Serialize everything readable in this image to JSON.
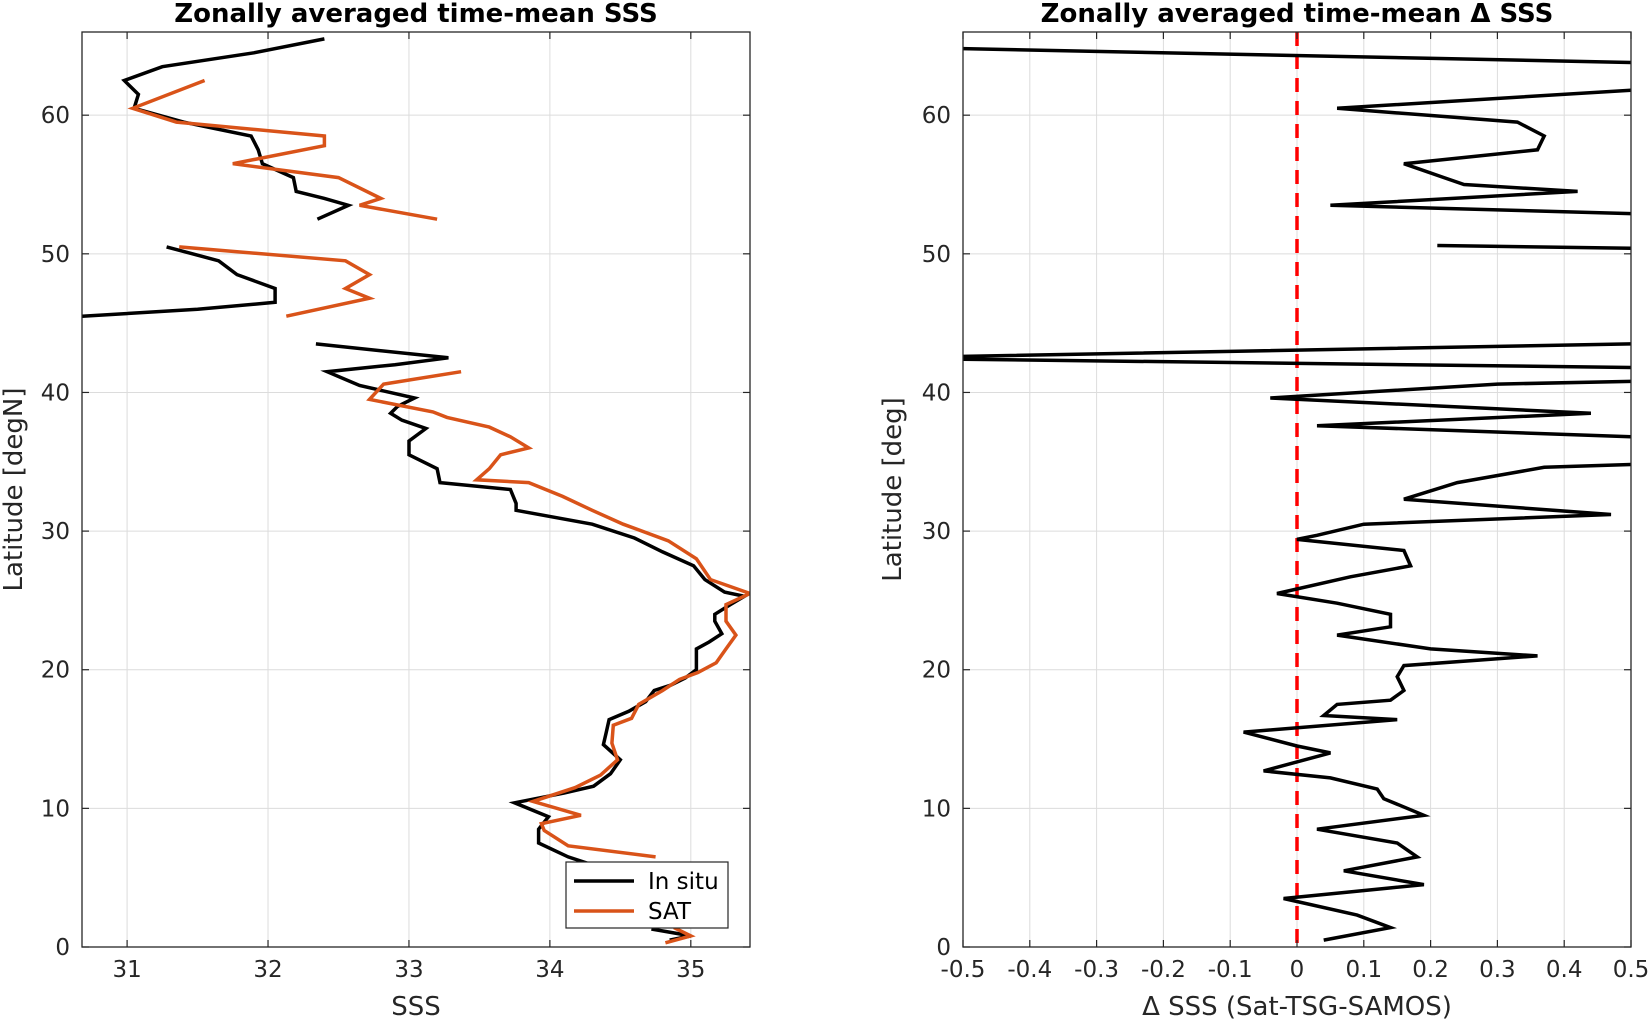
{
  "chart_data": [
    {
      "type": "line",
      "title": "Zonally averaged time-mean SSS",
      "xlabel": "SSS",
      "ylabel": "Latitude [degN]",
      "xlim": [
        30.68,
        35.42
      ],
      "ylim": [
        0,
        66
      ],
      "xticks": [
        31,
        32,
        33,
        34,
        35
      ],
      "yticks": [
        0,
        10,
        20,
        30,
        40,
        50,
        60
      ],
      "grid": true,
      "legend_position": "bottom-right",
      "colors": {
        "In situ": "#000000",
        "SAT": "#d95319"
      },
      "series": [
        {
          "name": "In situ",
          "segments": [
            [
              [
                32.4,
                65.5
              ],
              [
                31.9,
                64.5
              ],
              [
                31.25,
                63.5
              ],
              [
                30.98,
                62.5
              ],
              [
                31.08,
                61.5
              ],
              [
                31.05,
                60.5
              ],
              [
                31.4,
                59.5
              ],
              [
                31.88,
                58.5
              ],
              [
                31.93,
                57.5
              ],
              [
                31.96,
                56.5
              ],
              [
                32.18,
                55.5
              ],
              [
                32.2,
                54.5
              ],
              [
                32.4,
                54.0
              ],
              [
                32.57,
                53.5
              ],
              [
                32.35,
                52.5
              ]
            ],
            [
              [
                31.28,
                50.5
              ],
              [
                31.65,
                49.5
              ],
              [
                31.78,
                48.5
              ],
              [
                32.05,
                47.5
              ],
              [
                32.05,
                46.5
              ],
              [
                31.5,
                46.0
              ],
              [
                30.68,
                45.5
              ]
            ],
            [
              [
                32.34,
                43.5
              ],
              [
                33.28,
                42.5
              ],
              [
                32.9,
                42.0
              ],
              [
                32.42,
                41.5
              ],
              [
                32.65,
                40.5
              ],
              [
                33.04,
                39.6
              ],
              [
                32.92,
                39.0
              ],
              [
                32.87,
                38.5
              ],
              [
                32.95,
                38.0
              ],
              [
                33.12,
                37.4
              ],
              [
                33.0,
                36.5
              ],
              [
                33.0,
                35.5
              ],
              [
                33.2,
                34.5
              ],
              [
                33.22,
                33.5
              ],
              [
                33.72,
                33.0
              ],
              [
                33.76,
                32.0
              ],
              [
                33.76,
                31.5
              ],
              [
                34.3,
                30.5
              ],
              [
                34.6,
                29.5
              ],
              [
                34.8,
                28.5
              ],
              [
                35.02,
                27.5
              ],
              [
                35.1,
                26.5
              ],
              [
                35.24,
                25.6
              ],
              [
                35.38,
                25.3
              ],
              [
                35.28,
                24.7
              ],
              [
                35.17,
                24.0
              ],
              [
                35.17,
                23.5
              ],
              [
                35.22,
                22.6
              ],
              [
                35.13,
                22.0
              ],
              [
                35.04,
                21.5
              ],
              [
                35.04,
                20.5
              ],
              [
                35.04,
                20.0
              ],
              [
                34.96,
                19.4
              ],
              [
                34.86,
                18.9
              ],
              [
                34.74,
                18.5
              ],
              [
                34.68,
                17.7
              ],
              [
                34.56,
                17.0
              ],
              [
                34.42,
                16.4
              ],
              [
                34.4,
                15.5
              ],
              [
                34.38,
                14.6
              ],
              [
                34.5,
                13.5
              ],
              [
                34.43,
                12.5
              ],
              [
                34.31,
                11.6
              ],
              [
                34.1,
                11.1
              ],
              [
                33.75,
                10.4
              ],
              [
                33.99,
                9.4
              ],
              [
                33.92,
                8.5
              ],
              [
                33.92,
                7.5
              ],
              [
                34.13,
                6.5
              ],
              [
                34.4,
                5.6
              ]
            ],
            [
              [
                34.72,
                1.3
              ],
              [
                35.0,
                0.8
              ],
              [
                34.85,
                0.5
              ]
            ]
          ]
        },
        {
          "name": "SAT",
          "segments": [
            [
              [
                31.55,
                62.5
              ],
              [
                31.04,
                60.5
              ],
              [
                31.35,
                59.5
              ],
              [
                32.4,
                58.5
              ],
              [
                32.4,
                57.8
              ],
              [
                31.75,
                56.5
              ],
              [
                32.5,
                55.5
              ],
              [
                32.8,
                54.0
              ],
              [
                32.65,
                53.5
              ],
              [
                33.2,
                52.5
              ]
            ],
            [
              [
                31.37,
                50.5
              ],
              [
                32.55,
                49.5
              ],
              [
                32.72,
                48.5
              ],
              [
                32.55,
                47.5
              ],
              [
                32.72,
                46.8
              ],
              [
                32.13,
                45.5
              ]
            ],
            [
              [
                33.37,
                41.5
              ],
              [
                32.82,
                40.6
              ],
              [
                32.72,
                39.5
              ],
              [
                33.17,
                38.6
              ],
              [
                33.27,
                38.2
              ],
              [
                33.57,
                37.5
              ],
              [
                33.72,
                36.8
              ],
              [
                33.85,
                36.0
              ],
              [
                33.65,
                35.5
              ],
              [
                33.57,
                34.5
              ],
              [
                33.48,
                33.7
              ],
              [
                33.85,
                33.5
              ],
              [
                34.09,
                32.5
              ],
              [
                34.3,
                31.5
              ],
              [
                34.52,
                30.5
              ],
              [
                34.84,
                29.3
              ],
              [
                35.04,
                28.0
              ],
              [
                35.14,
                26.5
              ],
              [
                35.42,
                25.5
              ],
              [
                35.25,
                24.7
              ],
              [
                35.25,
                24.0
              ],
              [
                35.25,
                23.5
              ],
              [
                35.32,
                22.5
              ],
              [
                35.25,
                21.5
              ],
              [
                35.18,
                20.5
              ],
              [
                35.05,
                19.8
              ],
              [
                34.92,
                19.3
              ],
              [
                34.8,
                18.5
              ],
              [
                34.63,
                17.5
              ],
              [
                34.58,
                16.5
              ],
              [
                34.45,
                16.0
              ],
              [
                34.44,
                14.7
              ],
              [
                34.48,
                13.5
              ],
              [
                34.36,
                12.4
              ],
              [
                34.18,
                11.5
              ],
              [
                33.88,
                10.5
              ],
              [
                34.22,
                9.5
              ],
              [
                33.94,
                8.9
              ],
              [
                33.96,
                8.4
              ],
              [
                34.13,
                7.3
              ],
              [
                34.75,
                6.5
              ]
            ],
            [
              [
                34.88,
                1.4
              ],
              [
                35.0,
                0.8
              ],
              [
                34.82,
                0.3
              ]
            ]
          ]
        }
      ]
    },
    {
      "type": "line",
      "title": "Zonally averaged time-mean Δ SSS",
      "xlabel": "Δ SSS (Sat-TSG-SAMOS)",
      "ylabel": "Latitude [deg]",
      "xlim": [
        -0.5,
        0.5
      ],
      "ylim": [
        0,
        66
      ],
      "xticks": [
        -0.5,
        -0.4,
        -0.3,
        -0.2,
        -0.1,
        0,
        0.1,
        0.2,
        0.3,
        0.4,
        0.5
      ],
      "yticks": [
        0,
        10,
        20,
        30,
        40,
        50,
        60
      ],
      "grid": true,
      "reference_line": {
        "x": 0,
        "style": "dashed",
        "color": "#ff0000"
      },
      "colors": {
        "line": "#000000"
      },
      "series": [
        {
          "segments": [
            [
              [
                -0.5,
                64.8
              ],
              [
                0.5,
                63.8
              ]
            ],
            [
              [
                0.5,
                61.8
              ],
              [
                0.06,
                60.5
              ],
              [
                0.33,
                59.5
              ],
              [
                0.37,
                58.5
              ],
              [
                0.36,
                57.5
              ],
              [
                0.16,
                56.5
              ],
              [
                0.22,
                55.5
              ],
              [
                0.25,
                55.0
              ],
              [
                0.42,
                54.5
              ],
              [
                0.05,
                53.5
              ],
              [
                0.5,
                52.9
              ]
            ],
            [
              [
                0.21,
                50.6
              ],
              [
                0.5,
                50.4
              ]
            ],
            [
              [
                0.5,
                43.5
              ],
              [
                -0.5,
                42.6
              ],
              [
                -0.5,
                42.4
              ],
              [
                0.5,
                41.8
              ]
            ],
            [
              [
                0.5,
                40.8
              ],
              [
                0.3,
                40.6
              ],
              [
                -0.04,
                39.6
              ],
              [
                0.44,
                38.5
              ],
              [
                0.03,
                37.6
              ],
              [
                0.5,
                36.8
              ]
            ],
            [
              [
                0.5,
                34.8
              ],
              [
                0.37,
                34.6
              ],
              [
                0.24,
                33.5
              ],
              [
                0.16,
                32.3
              ],
              [
                0.47,
                31.2
              ],
              [
                0.1,
                30.5
              ],
              [
                0.03,
                29.7
              ],
              [
                0.0,
                29.4
              ],
              [
                0.16,
                28.6
              ],
              [
                0.17,
                27.5
              ],
              [
                0.08,
                26.7
              ],
              [
                -0.03,
                25.5
              ],
              [
                0.06,
                24.8
              ],
              [
                0.14,
                24.0
              ],
              [
                0.14,
                23.1
              ],
              [
                0.06,
                22.5
              ],
              [
                0.2,
                21.5
              ],
              [
                0.36,
                21.0
              ],
              [
                0.16,
                20.3
              ],
              [
                0.15,
                19.5
              ],
              [
                0.16,
                18.5
              ],
              [
                0.14,
                17.8
              ],
              [
                0.06,
                17.5
              ],
              [
                0.04,
                16.7
              ],
              [
                0.15,
                16.4
              ],
              [
                -0.08,
                15.5
              ],
              [
                0.0,
                14.5
              ],
              [
                0.05,
                14.0
              ],
              [
                -0.05,
                12.7
              ],
              [
                0.05,
                12.2
              ],
              [
                0.12,
                11.4
              ],
              [
                0.13,
                10.7
              ],
              [
                0.19,
                9.5
              ],
              [
                0.03,
                8.5
              ],
              [
                0.15,
                7.5
              ],
              [
                0.18,
                6.5
              ],
              [
                0.07,
                5.5
              ],
              [
                0.19,
                4.5
              ],
              [
                -0.02,
                3.5
              ],
              [
                0.09,
                2.3
              ],
              [
                0.14,
                1.4
              ],
              [
                0.04,
                0.5
              ]
            ]
          ]
        }
      ]
    }
  ]
}
